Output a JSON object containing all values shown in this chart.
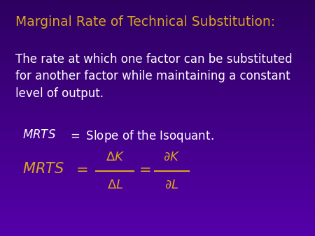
{
  "bg_color_top": "#2D0060",
  "bg_color_bottom": "#5500AA",
  "title_text": "Marginal Rate of Technical Substitution:",
  "title_color": "#DAA520",
  "title_fontsize": 13.5,
  "body_text": "The rate at which one factor can be substituted\nfor another factor while maintaining a constant\nlevel of output.",
  "body_color": "#FFFFFF",
  "body_fontsize": 12,
  "gold_color": "#DAA520",
  "white_color": "#FFFFFF",
  "fig_width": 4.5,
  "fig_height": 3.38,
  "dpi": 100
}
